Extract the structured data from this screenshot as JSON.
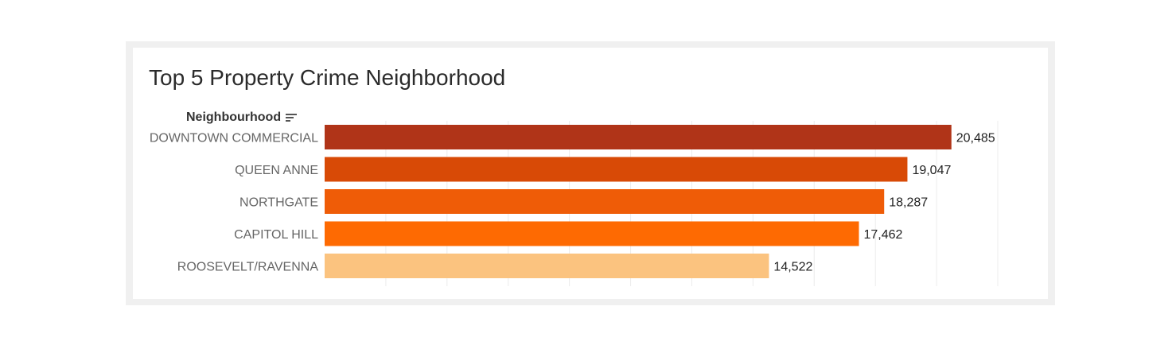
{
  "chart_data": {
    "type": "bar",
    "orientation": "horizontal",
    "title": "Top 5 Property Crime Neighborhood",
    "dimension_label": "Neighbourhood",
    "categories": [
      "DOWNTOWN COMMERCIAL",
      "QUEEN ANNE",
      "NORTHGATE",
      "CAPITOL HILL",
      "ROOSEVELT/RAVENNA"
    ],
    "values": [
      20485,
      19047,
      18287,
      17462,
      14522
    ],
    "value_labels": [
      "20,485",
      "19,047",
      "18,287",
      "17,462",
      "14,522"
    ],
    "colors": [
      "#b03418",
      "#d84a06",
      "#ef5c07",
      "#fe6a02",
      "#fbc37f"
    ],
    "xlim": [
      0,
      22000
    ],
    "grid": true
  },
  "header": {
    "sort_icon": "sort-descending-icon"
  }
}
